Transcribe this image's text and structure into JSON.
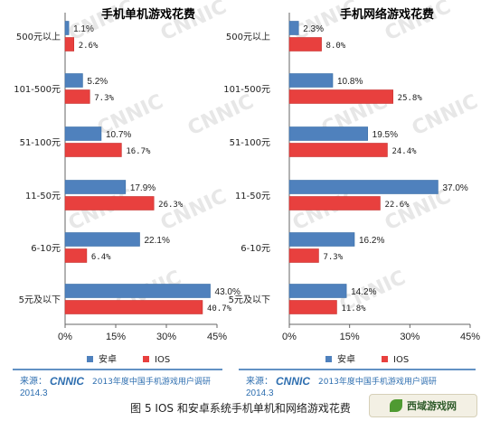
{
  "chart_data": [
    {
      "type": "bar",
      "orientation": "horizontal",
      "title": "手机单机游戏花费",
      "categories": [
        "500元以上",
        "101-500元",
        "51-100元",
        "11-50元",
        "6-10元",
        "5元及以下"
      ],
      "series": [
        {
          "name": "安卓",
          "color": "#4f81bd",
          "values": [
            1.1,
            5.2,
            10.7,
            17.9,
            22.1,
            43.0
          ]
        },
        {
          "name": "IOS",
          "color": "#e8403e",
          "values": [
            2.6,
            7.3,
            16.7,
            26.3,
            6.4,
            40.7
          ]
        }
      ],
      "value_labels": [
        [
          "1.1%",
          "5.2%",
          "10.7%",
          "17.9%",
          "22.1%",
          "43.0%"
        ],
        [
          "2.6%",
          "7.3%",
          "16.7%",
          "26.3%",
          "6.4%",
          "40.7%"
        ]
      ],
      "xlim": [
        0,
        45
      ],
      "xticks": [
        "0%",
        "15%",
        "30%",
        "45%"
      ],
      "legend_position": "bottom"
    },
    {
      "type": "bar",
      "orientation": "horizontal",
      "title": "手机网络游戏花费",
      "categories": [
        "500元以上",
        "101-500元",
        "51-100元",
        "11-50元",
        "6-10元",
        "5元及以下"
      ],
      "series": [
        {
          "name": "安卓",
          "color": "#4f81bd",
          "values": [
            2.3,
            10.8,
            19.5,
            37.0,
            16.2,
            14.2
          ]
        },
        {
          "name": "IOS",
          "color": "#e8403e",
          "values": [
            8.0,
            25.8,
            24.4,
            22.6,
            7.3,
            11.8
          ]
        }
      ],
      "value_labels": [
        [
          "2.3%",
          "10.8%",
          "19.5%",
          "37.0%",
          "16.2%",
          "14.2%"
        ],
        [
          "8.0%",
          "25.8%",
          "24.4%",
          "22.6%",
          "7.3%",
          "11.8%"
        ]
      ],
      "xlim": [
        0,
        45
      ],
      "xticks": [
        "0%",
        "15%",
        "30%",
        "45%"
      ],
      "legend_position": "bottom"
    }
  ],
  "source": {
    "prefix": "来源：",
    "logo": "CNNIC",
    "text": "2013年度中国手机游戏用户调研",
    "date": "2014.3"
  },
  "watermark": "CNNIC",
  "caption": "图 5 IOS 和安卓系统手机单机和网络游戏花费",
  "site_logo": "西域游戏网",
  "colors": {
    "android": "#4f81bd",
    "ios": "#e8403e",
    "source_text": "#2f6fb0"
  }
}
